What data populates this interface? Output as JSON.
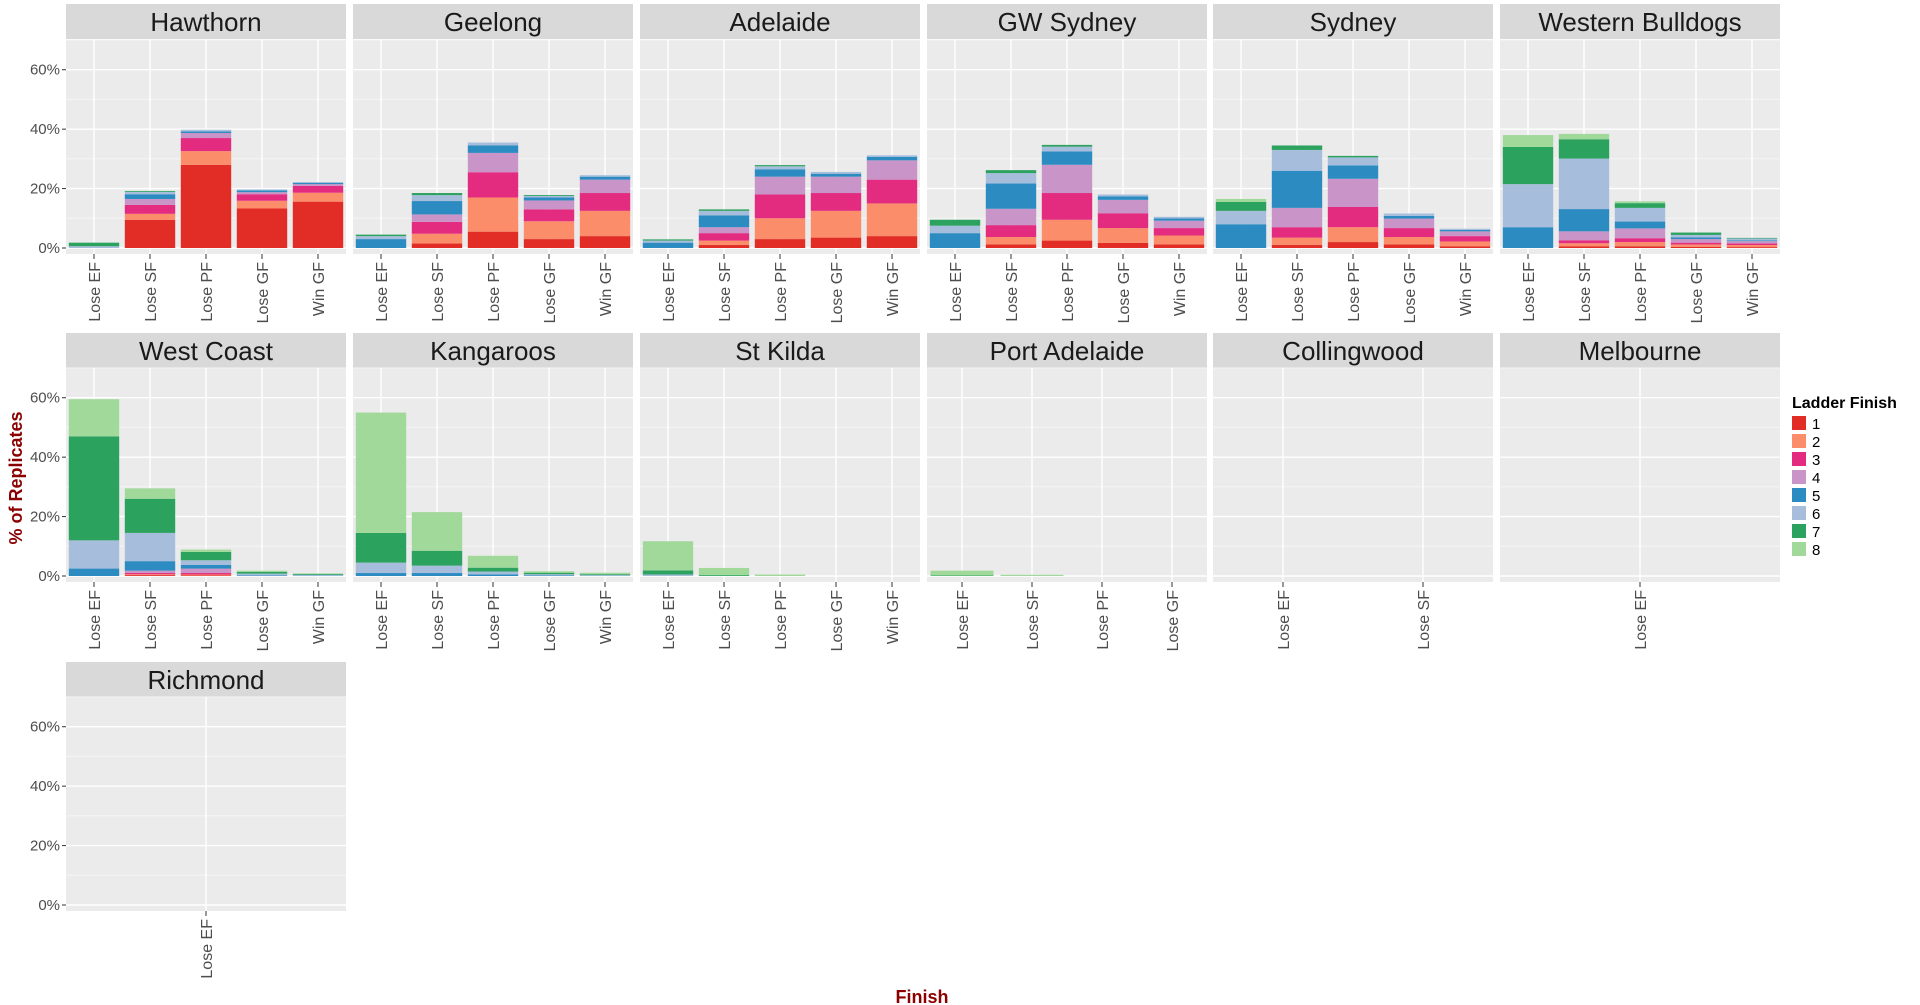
{
  "chart_data": {
    "type": "bar",
    "stacked": true,
    "faceted": true,
    "xlabel": "Finish",
    "ylabel": "% of Replicates",
    "ylim": [
      0,
      70
    ],
    "y_ticks": [
      "0%",
      "20%",
      "40%",
      "60%"
    ],
    "y_tick_values": [
      0,
      20,
      40,
      60
    ],
    "grid": true,
    "legend_position": "right",
    "legend": {
      "title": "Ladder Finish",
      "entries": [
        {
          "label": "1",
          "color": "#e22d27"
        },
        {
          "label": "2",
          "color": "#fc8d6a"
        },
        {
          "label": "3",
          "color": "#e32b7f"
        },
        {
          "label": "4",
          "color": "#c994c7"
        },
        {
          "label": "5",
          "color": "#2c8cc2"
        },
        {
          "label": "6",
          "color": "#a6bddb"
        },
        {
          "label": "7",
          "color": "#2ca25f"
        },
        {
          "label": "8",
          "color": "#a1d99b"
        }
      ]
    },
    "facets": [
      {
        "team": "Hawthorn",
        "categories": [
          "Lose EF",
          "Lose SF",
          "Lose PF",
          "Lose GF",
          "Win GF"
        ],
        "stacks": [
          [
            0,
            0,
            0,
            0,
            0,
            0.6,
            1.2,
            0
          ],
          [
            9.5,
            2,
            3,
            2,
            1.6,
            0.8,
            0.3,
            0
          ],
          [
            28,
            4.6,
            4.4,
            1.7,
            0.5,
            0.6,
            0,
            0
          ],
          [
            13.3,
            2.6,
            2.2,
            0.7,
            0.6,
            0.3,
            0,
            0
          ],
          [
            15.6,
            3,
            2.3,
            0.6,
            0.4,
            0.3,
            0,
            0
          ]
        ]
      },
      {
        "team": "Geelong",
        "categories": [
          "Lose EF",
          "Lose SF",
          "Lose PF",
          "Lose GF",
          "Win GF"
        ],
        "stacks": [
          [
            0,
            0,
            0,
            0,
            3,
            1,
            0.5,
            0
          ],
          [
            1.5,
            3.3,
            4,
            2.5,
            4.5,
            2,
            0.7,
            0
          ],
          [
            5.5,
            11.5,
            8.5,
            6.5,
            2.5,
            1,
            0,
            0
          ],
          [
            3,
            6,
            4,
            3,
            1,
            0.5,
            0.3,
            0
          ],
          [
            4,
            8.5,
            6,
            4.5,
            1,
            0.5,
            0,
            0
          ]
        ]
      },
      {
        "team": "Adelaide",
        "categories": [
          "Lose EF",
          "Lose SF",
          "Lose PF",
          "Lose GF",
          "Win GF"
        ],
        "stacks": [
          [
            0,
            0,
            0,
            0,
            1.8,
            0.7,
            0.4,
            0
          ],
          [
            1,
            1.5,
            2.5,
            2,
            4,
            1.5,
            0.5,
            0
          ],
          [
            3,
            7,
            8,
            6,
            2.5,
            1,
            0.4,
            0
          ],
          [
            3.5,
            9,
            6,
            5.5,
            1,
            0.6,
            0,
            0
          ],
          [
            4,
            11,
            8,
            6.5,
            1.2,
            0.5,
            0,
            0
          ]
        ]
      },
      {
        "team": "GW Sydney",
        "categories": [
          "Lose EF",
          "Lose SF",
          "Lose PF",
          "Lose GF",
          "Win GF"
        ],
        "stacks": [
          [
            0,
            0,
            0,
            0,
            5,
            2.5,
            2,
            0
          ],
          [
            1.2,
            2.5,
            4,
            5.5,
            8.5,
            3.5,
            1,
            0
          ],
          [
            2.5,
            7,
            9,
            9.5,
            4.5,
            1.6,
            0.6,
            0
          ],
          [
            1.7,
            5,
            5,
            4.5,
            1.2,
            0.6,
            0,
            0
          ],
          [
            1.2,
            3,
            2.5,
            2.5,
            0.8,
            0.5,
            0,
            0
          ]
        ]
      },
      {
        "team": "Sydney",
        "categories": [
          "Lose EF",
          "Lose SF",
          "Lose PF",
          "Lose GF",
          "Win GF"
        ],
        "stacks": [
          [
            0,
            0,
            0,
            0,
            8,
            4.5,
            3,
            1
          ],
          [
            1,
            2.5,
            3.5,
            6.5,
            12.5,
            7,
            1.5,
            0
          ],
          [
            2,
            5,
            6.8,
            9.5,
            4.5,
            2.7,
            0.5,
            0
          ],
          [
            1.2,
            2.5,
            3,
            3.2,
            0.9,
            0.8,
            0,
            0
          ],
          [
            0.6,
            1.6,
            1.8,
            1.6,
            0.5,
            0.4,
            0,
            0
          ]
        ]
      },
      {
        "team": "Western Bulldogs",
        "categories": [
          "Lose EF",
          "Lose SF",
          "Lose PF",
          "Lose GF",
          "Win GF"
        ],
        "stacks": [
          [
            0,
            0,
            0,
            0,
            7,
            14.5,
            12.5,
            4
          ],
          [
            0.6,
            1,
            1,
            3,
            7.5,
            17,
            6.5,
            1.8
          ],
          [
            0.6,
            1.4,
            1.3,
            3.3,
            2.3,
            4.6,
            1.6,
            0.6
          ],
          [
            0.4,
            0.8,
            0.6,
            1.2,
            0.6,
            0.8,
            0.8,
            0
          ],
          [
            0.3,
            0.7,
            0.5,
            0.8,
            0.3,
            0.6,
            0.2,
            0
          ]
        ]
      },
      {
        "team": "West Coast",
        "categories": [
          "Lose EF",
          "Lose SF",
          "Lose PF",
          "Lose GF",
          "Win GF"
        ],
        "stacks": [
          [
            0,
            0,
            0,
            0,
            2.5,
            9.5,
            35,
            12.5
          ],
          [
            0.3,
            0.3,
            0.4,
            0.8,
            3.2,
            9.5,
            11.5,
            3.5
          ],
          [
            0.2,
            0.3,
            0.5,
            1.5,
            1.2,
            1.6,
            2.8,
            0.8
          ],
          [
            0,
            0,
            0,
            0,
            0.2,
            0.6,
            0.6,
            0.4
          ],
          [
            0,
            0,
            0,
            0,
            0.1,
            0.3,
            0.3,
            0.2
          ]
        ]
      },
      {
        "team": "Kangaroos",
        "categories": [
          "Lose EF",
          "Lose SF",
          "Lose PF",
          "Lose GF",
          "Win GF"
        ],
        "stacks": [
          [
            0,
            0,
            0,
            0,
            1,
            3.5,
            10,
            40.5
          ],
          [
            0,
            0,
            0,
            0,
            1,
            2.5,
            5,
            13
          ],
          [
            0,
            0,
            0,
            0,
            0.5,
            1,
            1.3,
            4
          ],
          [
            0,
            0,
            0,
            0,
            0.2,
            0.4,
            0.5,
            0.5
          ],
          [
            0,
            0,
            0,
            0,
            0.1,
            0.2,
            0.3,
            0.5
          ]
        ]
      },
      {
        "team": "St Kilda",
        "categories": [
          "Lose EF",
          "Lose SF",
          "Lose PF",
          "Lose GF",
          "Win GF"
        ],
        "stacks": [
          [
            0,
            0,
            0,
            0,
            0,
            0.5,
            1.4,
            9.8
          ],
          [
            0,
            0,
            0,
            0,
            0,
            0,
            0.3,
            2.4
          ],
          [
            0,
            0,
            0,
            0,
            0,
            0,
            0,
            0.5
          ],
          [
            0,
            0,
            0,
            0,
            0,
            0,
            0,
            0
          ],
          [
            0,
            0,
            0,
            0,
            0,
            0,
            0,
            0
          ]
        ]
      },
      {
        "team": "Port Adelaide",
        "categories": [
          "Lose EF",
          "Lose SF",
          "Lose PF",
          "Lose GF"
        ],
        "stacks": [
          [
            0,
            0,
            0,
            0,
            0,
            0,
            0.2,
            1.6
          ],
          [
            0,
            0,
            0,
            0,
            0,
            0,
            0,
            0.4
          ],
          [
            0,
            0,
            0,
            0,
            0,
            0,
            0,
            0
          ],
          [
            0,
            0,
            0,
            0,
            0,
            0,
            0,
            0
          ]
        ]
      },
      {
        "team": "Collingwood",
        "categories": [
          "Lose EF",
          "Lose SF"
        ],
        "stacks": [
          [
            0,
            0,
            0,
            0,
            0,
            0,
            0,
            0
          ],
          [
            0,
            0,
            0,
            0,
            0,
            0,
            0,
            0
          ]
        ]
      },
      {
        "team": "Melbourne",
        "categories": [
          "Lose EF"
        ],
        "stacks": [
          [
            0,
            0,
            0,
            0,
            0,
            0,
            0,
            0
          ]
        ]
      },
      {
        "team": "Richmond",
        "categories": [
          "Lose EF"
        ],
        "stacks": [
          [
            0,
            0,
            0,
            0,
            0,
            0,
            0,
            0
          ]
        ]
      }
    ]
  }
}
